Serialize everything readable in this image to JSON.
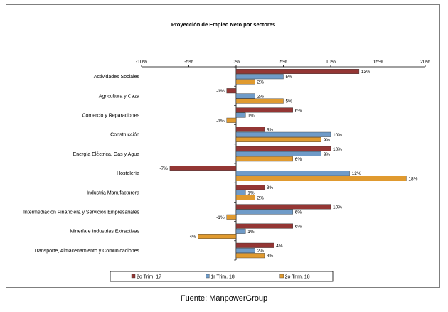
{
  "chart_data": {
    "type": "bar",
    "orientation": "horizontal",
    "title": "Proyección de Empleo Neto por sectores",
    "xlim": [
      -10,
      20
    ],
    "xticks": [
      -10,
      -5,
      0,
      5,
      10,
      15,
      20
    ],
    "tick_suffix": "%",
    "categories": [
      "Actividades Sociales",
      "Agricultura y Caza",
      "Comercio y Reparaciones",
      "Construcción",
      "Energía Eléctrica, Gas y Agua",
      "Hostelería",
      "Industria Manufacturera",
      "Intermediación Financiera y Servicios Empresariales",
      "Minería e Industrias Extractivas",
      "Transporte, Almacenamiento y Comunicaciones"
    ],
    "series": [
      {
        "name": "2o Trim. 17",
        "color": "#943634",
        "values": [
          13,
          -1,
          6,
          3,
          10,
          -7,
          3,
          10,
          6,
          4
        ]
      },
      {
        "name": "1r Trim. 18",
        "color": "#6f9bc8",
        "values": [
          5,
          2,
          1,
          10,
          9,
          12,
          1,
          6,
          1,
          2
        ]
      },
      {
        "name": "2o Trim. 18",
        "color": "#e09a2f",
        "values": [
          2,
          5,
          -1,
          9,
          6,
          18,
          2,
          -1,
          -4,
          3
        ]
      }
    ],
    "legend_position": "bottom"
  },
  "source_note": "Fuente: ManpowerGroup"
}
